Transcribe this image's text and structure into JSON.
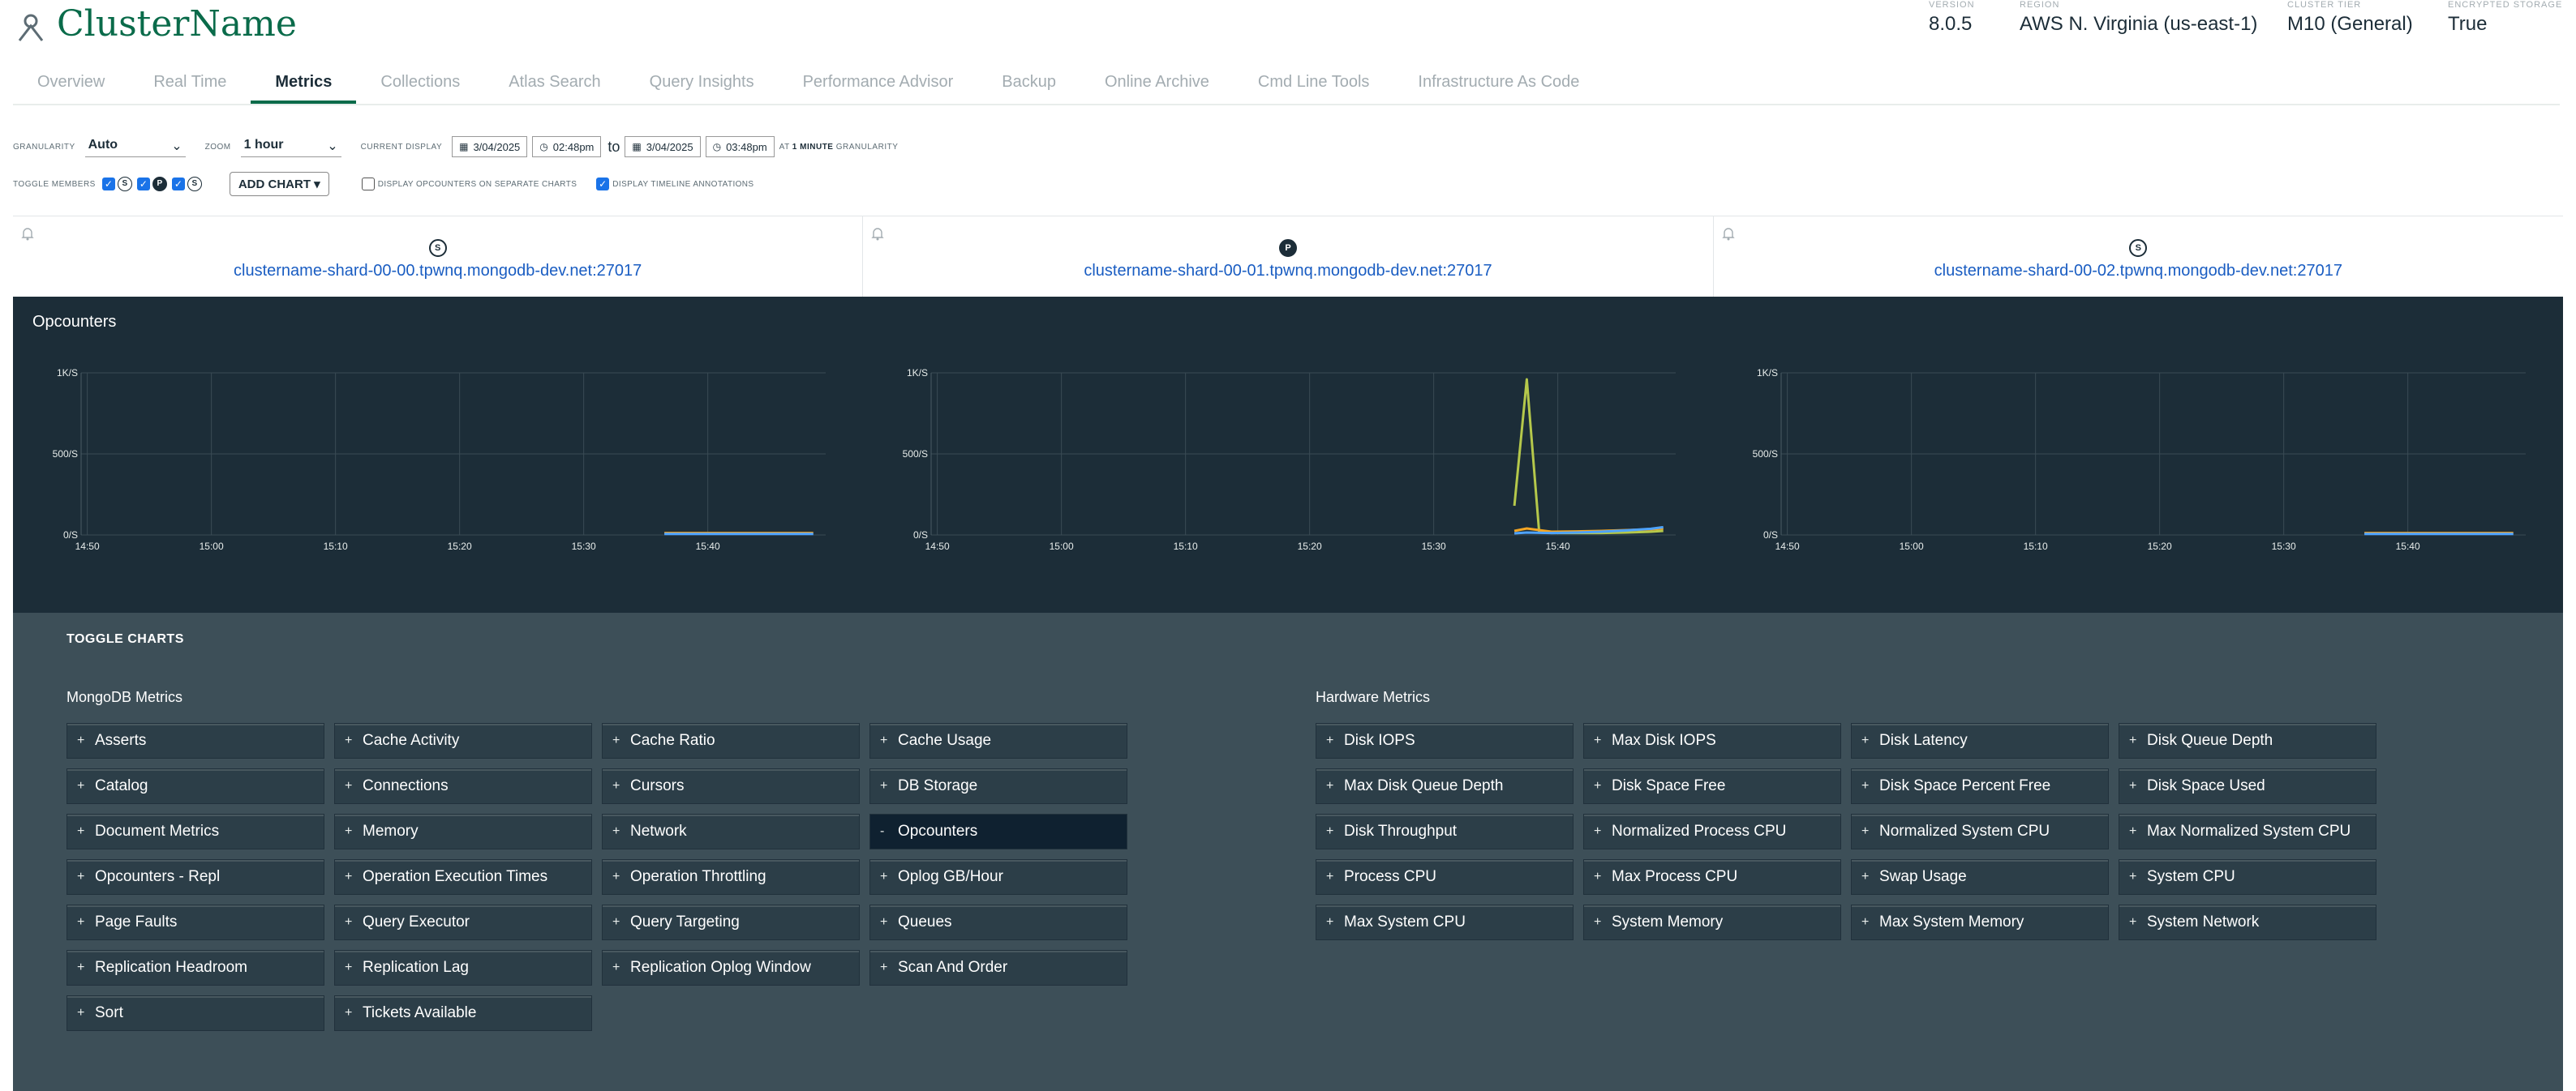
{
  "header": {
    "cluster_name": "ClusterName",
    "meta": [
      {
        "label": "VERSION",
        "value": "8.0.5"
      },
      {
        "label": "REGION",
        "value": "AWS N. Virginia (us-east-1)"
      },
      {
        "label": "CLUSTER TIER",
        "value": "M10 (General)"
      },
      {
        "label": "ENCRYPTED STORAGE",
        "value": "True"
      }
    ]
  },
  "tabs": [
    "Overview",
    "Real Time",
    "Metrics",
    "Collections",
    "Atlas Search",
    "Query Insights",
    "Performance Advisor",
    "Backup",
    "Online Archive",
    "Cmd Line Tools",
    "Infrastructure As Code"
  ],
  "active_tab": "Metrics",
  "controls": {
    "granularity_label": "GRANULARITY",
    "granularity_value": "Auto",
    "zoom_label": "ZOOM",
    "zoom_value": "1 hour",
    "current_display_label": "CURRENT DISPLAY",
    "from_date": "3/04/2025",
    "from_time": "02:48pm",
    "to_label": "to",
    "to_date": "3/04/2025",
    "to_time": "03:48pm",
    "at_label": "AT",
    "minute_label": "1 MINUTE",
    "granularity_suffix": "GRANULARITY",
    "toggle_members_label": "TOGGLE MEMBERS",
    "members": [
      "S",
      "P",
      "S"
    ],
    "add_chart_label": "ADD CHART ▾",
    "separate_label": "DISPLAY OPCOUNTERS ON SEPARATE CHARTS",
    "annotations_label": "DISPLAY TIMELINE ANNOTATIONS"
  },
  "hosts": [
    {
      "role": "S",
      "name": "clustername-shard-00-00.tpwnq.mongodb-dev.net:27017"
    },
    {
      "role": "P",
      "name": "clustername-shard-00-01.tpwnq.mongodb-dev.net:27017"
    },
    {
      "role": "S",
      "name": "clustername-shard-00-02.tpwnq.mongodb-dev.net:27017"
    }
  ],
  "chart_title": "Opcounters",
  "chart_data": [
    {
      "type": "line",
      "host": "clustername-shard-00-00.tpwnq.mongodb-dev.net:27017",
      "x_ticks": [
        "14:50",
        "15:00",
        "15:10",
        "15:20",
        "15:30",
        "15:40"
      ],
      "y_ticks": [
        "0/S",
        "500/S",
        "1K/S"
      ],
      "ylim": [
        0,
        1000
      ],
      "xlim": [
        0,
        60
      ],
      "series": [
        {
          "color": "#f5a623",
          "x": [
            47,
            49,
            51,
            53,
            55,
            57,
            59
          ],
          "values": [
            12,
            12,
            12,
            12,
            12,
            12,
            12
          ]
        },
        {
          "color": "#4ea3ff",
          "x": [
            47,
            49,
            51,
            53,
            55,
            57,
            59
          ],
          "values": [
            6,
            6,
            6,
            6,
            6,
            6,
            6
          ]
        }
      ]
    },
    {
      "type": "line",
      "host": "clustername-shard-00-01.tpwnq.mongodb-dev.net:27017",
      "x_ticks": [
        "14:50",
        "15:00",
        "15:10",
        "15:20",
        "15:30",
        "15:40"
      ],
      "y_ticks": [
        "0/S",
        "500/S",
        "1K/S"
      ],
      "ylim": [
        0,
        1000
      ],
      "xlim": [
        0,
        60
      ],
      "series": [
        {
          "color": "#b5c84b",
          "x": [
            47,
            48,
            49,
            50,
            52,
            54,
            56,
            58,
            59
          ],
          "values": [
            180,
            960,
            15,
            12,
            12,
            12,
            15,
            20,
            25
          ]
        },
        {
          "color": "#f5a623",
          "x": [
            47,
            48,
            50,
            52,
            54,
            56,
            58,
            59
          ],
          "values": [
            25,
            40,
            20,
            22,
            25,
            30,
            35,
            40
          ]
        },
        {
          "color": "#4ea3ff",
          "x": [
            47,
            48,
            50,
            52,
            54,
            56,
            58,
            59
          ],
          "values": [
            10,
            15,
            12,
            15,
            20,
            28,
            38,
            48
          ]
        }
      ]
    },
    {
      "type": "line",
      "host": "clustername-shard-00-02.tpwnq.mongodb-dev.net:27017",
      "x_ticks": [
        "14:50",
        "15:00",
        "15:10",
        "15:20",
        "15:30",
        "15:40"
      ],
      "y_ticks": [
        "0/S",
        "500/S",
        "1K/S"
      ],
      "ylim": [
        0,
        1000
      ],
      "xlim": [
        0,
        60
      ],
      "series": [
        {
          "color": "#f5a623",
          "x": [
            47,
            49,
            51,
            53,
            55,
            57,
            59
          ],
          "values": [
            12,
            12,
            12,
            12,
            12,
            12,
            12
          ]
        },
        {
          "color": "#4ea3ff",
          "x": [
            47,
            49,
            51,
            53,
            55,
            57,
            59
          ],
          "values": [
            6,
            6,
            6,
            6,
            6,
            6,
            6
          ]
        }
      ]
    }
  ],
  "toggle_charts": {
    "title": "TOGGLE CHARTS",
    "mongodb_title": "MongoDB Metrics",
    "mongodb_metrics": [
      {
        "label": "Asserts",
        "active": false
      },
      {
        "label": "Cache Activity",
        "active": false
      },
      {
        "label": "Cache Ratio",
        "active": false
      },
      {
        "label": "Cache Usage",
        "active": false
      },
      {
        "label": "Catalog",
        "active": false
      },
      {
        "label": "Connections",
        "active": false
      },
      {
        "label": "Cursors",
        "active": false
      },
      {
        "label": "DB Storage",
        "active": false
      },
      {
        "label": "Document Metrics",
        "active": false
      },
      {
        "label": "Memory",
        "active": false
      },
      {
        "label": "Network",
        "active": false
      },
      {
        "label": "Opcounters",
        "active": true
      },
      {
        "label": "Opcounters - Repl",
        "active": false
      },
      {
        "label": "Operation Execution Times",
        "active": false
      },
      {
        "label": "Operation Throttling",
        "active": false
      },
      {
        "label": "Oplog GB/Hour",
        "active": false
      },
      {
        "label": "Page Faults",
        "active": false
      },
      {
        "label": "Query Executor",
        "active": false
      },
      {
        "label": "Query Targeting",
        "active": false
      },
      {
        "label": "Queues",
        "active": false
      },
      {
        "label": "Replication Headroom",
        "active": false
      },
      {
        "label": "Replication Lag",
        "active": false
      },
      {
        "label": "Replication Oplog Window",
        "active": false
      },
      {
        "label": "Scan And Order",
        "active": false
      },
      {
        "label": "Sort",
        "active": false
      },
      {
        "label": "Tickets Available",
        "active": false
      }
    ],
    "hardware_title": "Hardware Metrics",
    "hardware_metrics": [
      {
        "label": "Disk IOPS",
        "active": false
      },
      {
        "label": "Max Disk IOPS",
        "active": false
      },
      {
        "label": "Disk Latency",
        "active": false
      },
      {
        "label": "Disk Queue Depth",
        "active": false
      },
      {
        "label": "Max Disk Queue Depth",
        "active": false
      },
      {
        "label": "Disk Space Free",
        "active": false
      },
      {
        "label": "Disk Space Percent Free",
        "active": false
      },
      {
        "label": "Disk Space Used",
        "active": false
      },
      {
        "label": "Disk Throughput",
        "active": false
      },
      {
        "label": "Normalized Process CPU",
        "active": false
      },
      {
        "label": "Normalized System CPU",
        "active": false
      },
      {
        "label": "Max Normalized System CPU",
        "active": false
      },
      {
        "label": "Process CPU",
        "active": false
      },
      {
        "label": "Max Process CPU",
        "active": false
      },
      {
        "label": "Swap Usage",
        "active": false
      },
      {
        "label": "System CPU",
        "active": false
      },
      {
        "label": "Max System CPU",
        "active": false
      },
      {
        "label": "System Memory",
        "active": false
      },
      {
        "label": "Max System Memory",
        "active": false
      },
      {
        "label": "System Network",
        "active": false
      }
    ]
  },
  "colors": {
    "brand": "#0a6b4a",
    "link": "#1a5dc2",
    "chart_bg": "#1c2d38",
    "toggle_bg": "#3d4f58"
  }
}
